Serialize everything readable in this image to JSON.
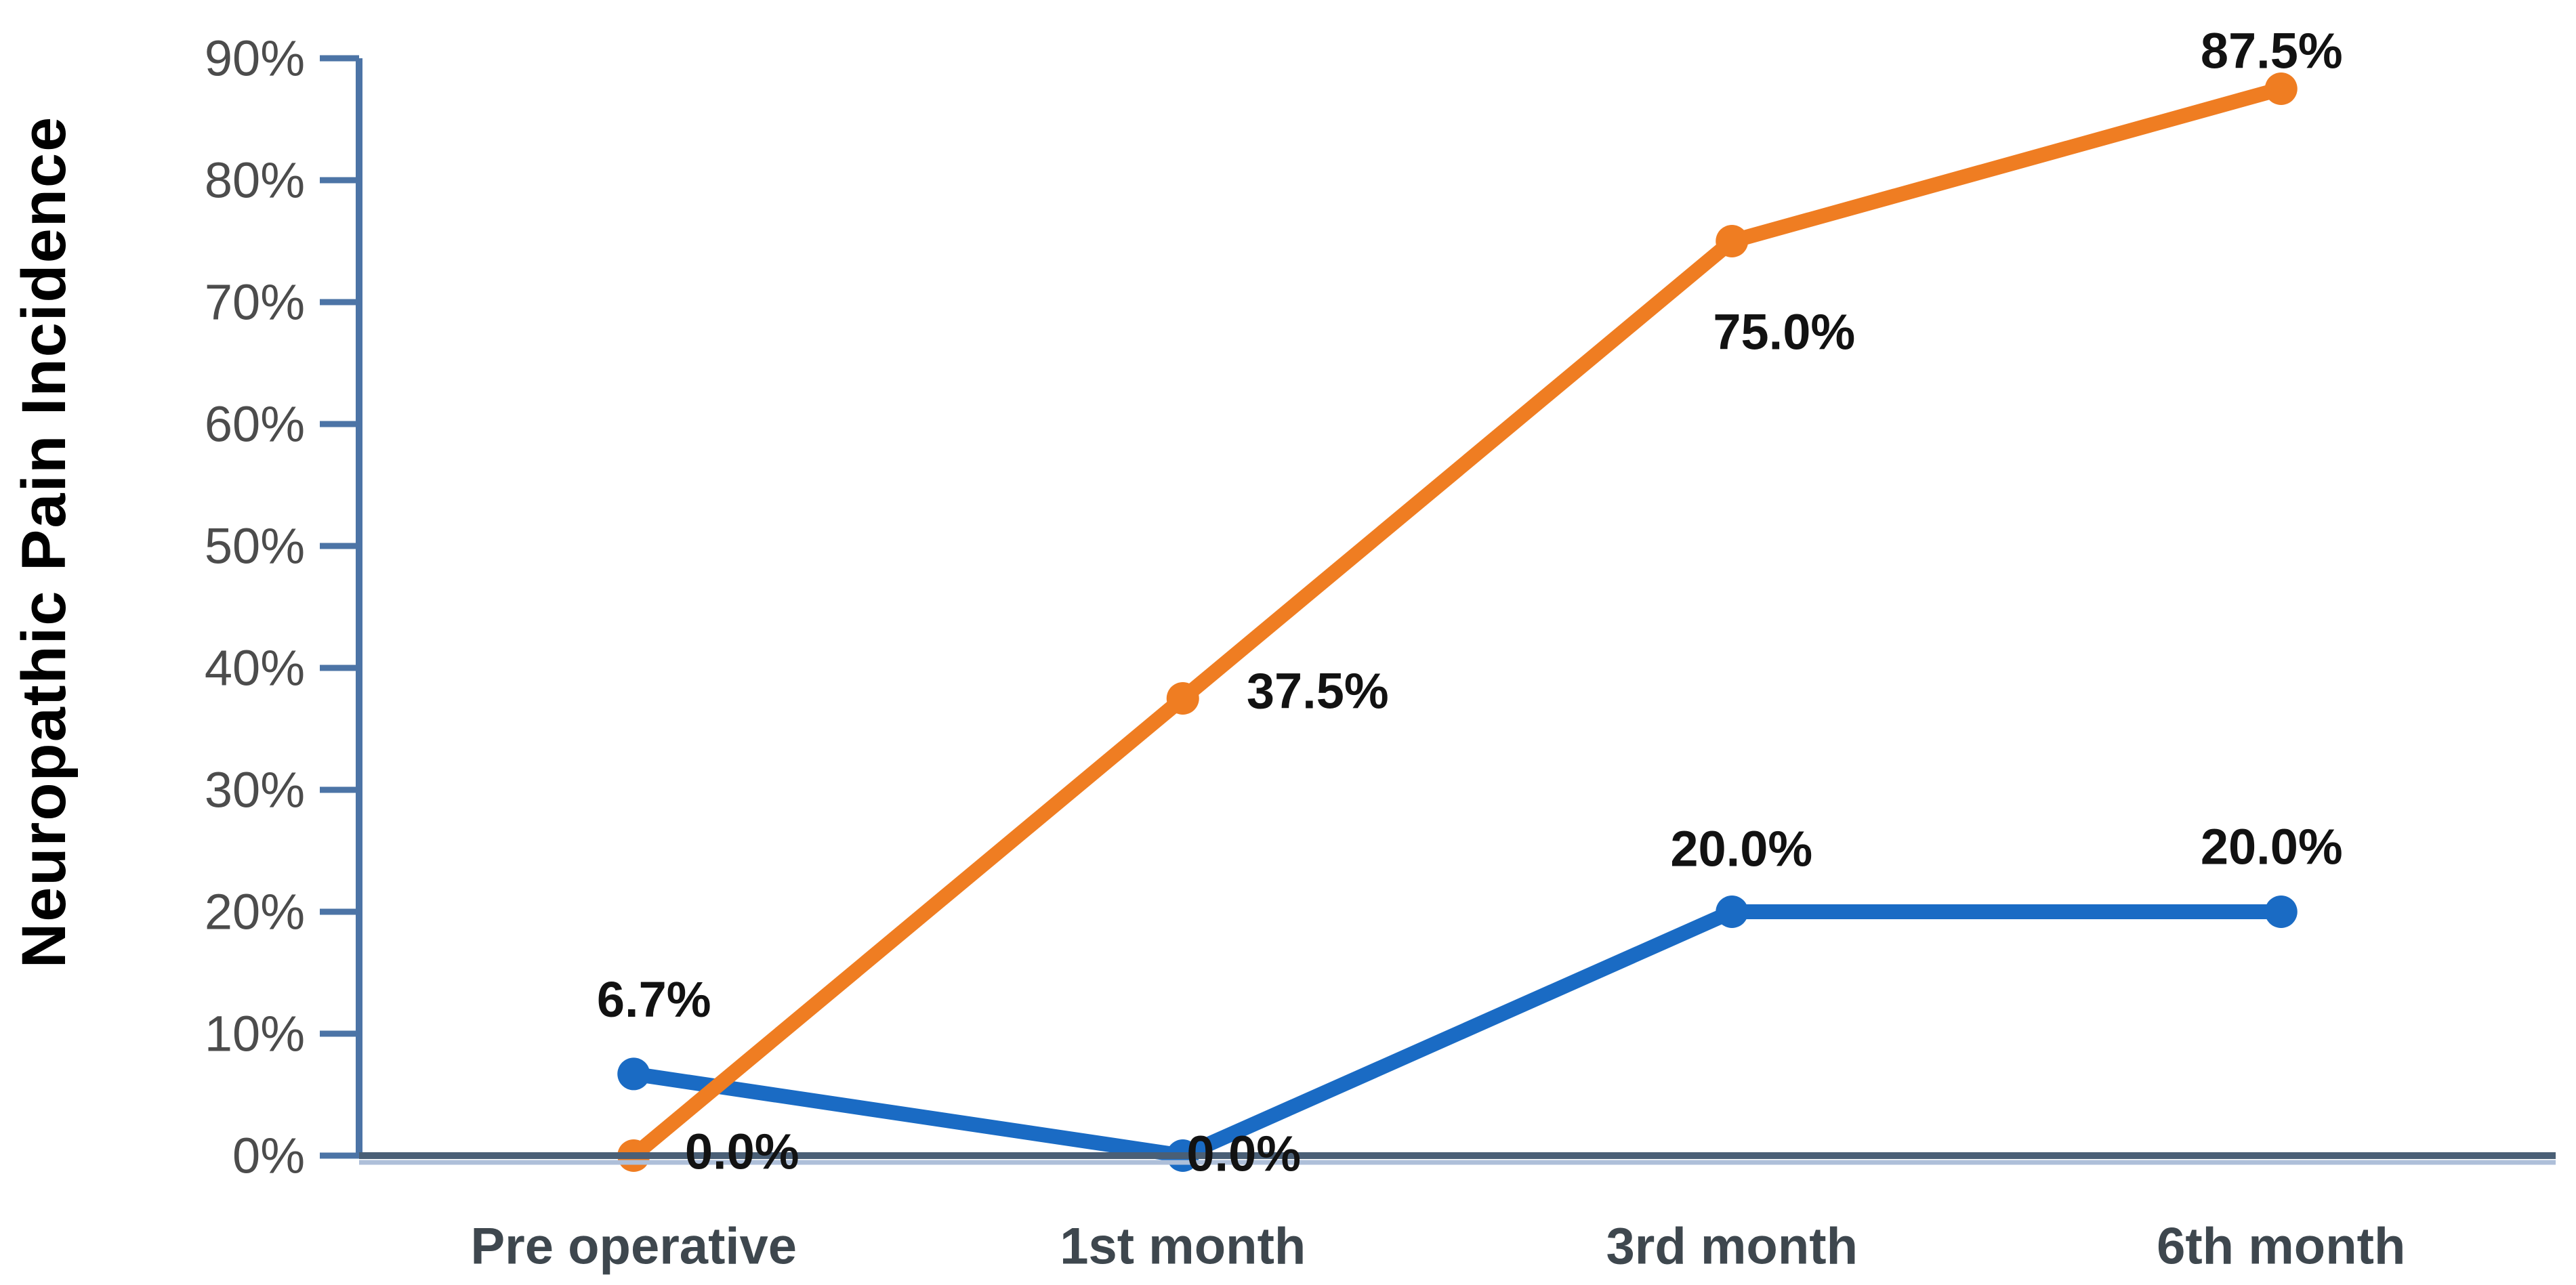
{
  "chart_data": {
    "type": "line",
    "title": "",
    "xlabel": "",
    "ylabel": "Neuropathic Pain Incidence",
    "categories": [
      "Pre operative",
      "1st month",
      "3rd month",
      "6th month"
    ],
    "y_axis": {
      "min": 0,
      "max": 90,
      "unit": "%",
      "tick_labels": [
        "0%",
        "10%",
        "20%",
        "30%",
        "40%",
        "50%",
        "60%",
        "70%",
        "80%",
        "90%"
      ],
      "tick_values": [
        0,
        10,
        20,
        30,
        40,
        50,
        60,
        70,
        80,
        90
      ],
      "grid": false
    },
    "legend": "none",
    "series": [
      {
        "id": "blue-series",
        "color": "#1A6BC4",
        "marker": "circle",
        "values": [
          6.7,
          0.0,
          20.0,
          20.0
        ],
        "point_labels": [
          "6.7%",
          "0.0%",
          "20.0%",
          "20.0%"
        ]
      },
      {
        "id": "orange-series",
        "color": "#EF7D22",
        "marker": "circle",
        "values": [
          0.0,
          37.5,
          75.0,
          87.5
        ],
        "point_labels": [
          "0.0%",
          "37.5%",
          "75.0%",
          "87.5%"
        ]
      }
    ],
    "label_offsets": [
      [
        [
          30,
          -110
        ],
        [
          90,
          -3
        ],
        [
          14,
          -93
        ],
        [
          -14,
          -96
        ]
      ],
      [
        [
          160,
          -6
        ],
        [
          199,
          -11
        ],
        [
          77,
          134
        ],
        [
          -14,
          -56
        ]
      ]
    ],
    "colors": {
      "axis_line": "#4C74A6",
      "baseline_dark": "#4A5F76",
      "baseline_light": "#AEBFD9",
      "tick_text": "#4C4C4C",
      "category_text": "#3E474E",
      "data_label_text": "#121212"
    }
  }
}
